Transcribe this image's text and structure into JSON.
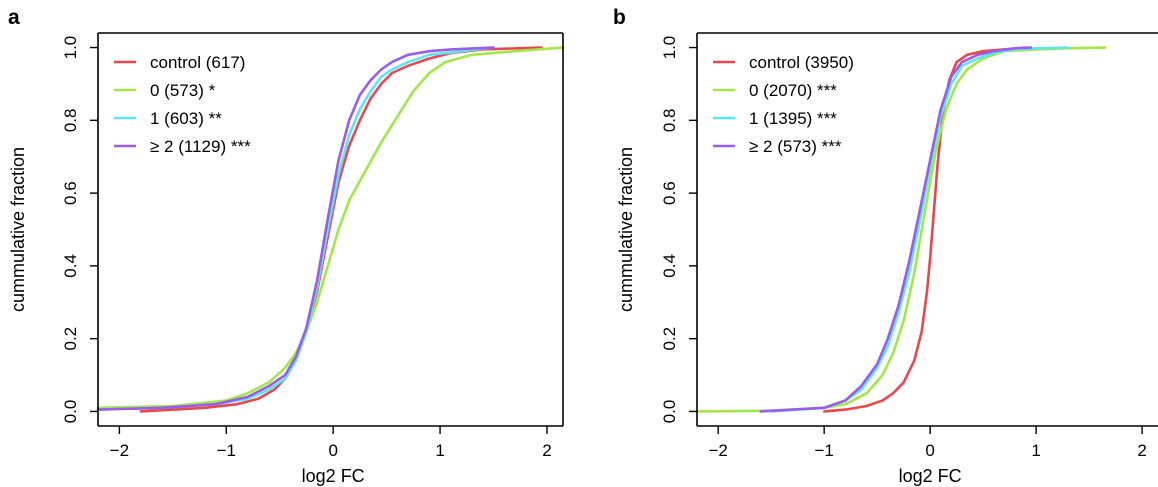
{
  "colors": {
    "control": "#e8484d",
    "zero": "#a3e64a",
    "one": "#5fe4f3",
    "two_plus": "#9b5ce8",
    "axis": "#000000"
  },
  "chart_data": [
    {
      "panel_label": "a",
      "type": "line",
      "xlabel": "log2 FC",
      "ylabel": "cummulative fraction",
      "xlim": [
        -2.2,
        2.15
      ],
      "ylim": [
        -0.04,
        1.04
      ],
      "x_ticks": [
        -2,
        -1,
        0,
        1,
        2
      ],
      "x_tick_labels": [
        "−2",
        "−1",
        "0",
        "1",
        "2"
      ],
      "y_ticks": [
        0.0,
        0.2,
        0.4,
        0.6,
        0.8,
        1.0
      ],
      "y_tick_labels": [
        "0.0",
        "0.2",
        "0.4",
        "0.6",
        "0.8",
        "1.0"
      ],
      "grid": false,
      "legend_position": "top-left",
      "series": [
        {
          "name": "control (617)",
          "color_key": "control",
          "x": [
            -1.8,
            -1.2,
            -0.9,
            -0.7,
            -0.55,
            -0.45,
            -0.35,
            -0.25,
            -0.15,
            -0.05,
            0.05,
            0.15,
            0.25,
            0.35,
            0.45,
            0.55,
            0.7,
            0.9,
            1.1,
            1.4,
            1.95
          ],
          "y": [
            0.0,
            0.01,
            0.02,
            0.035,
            0.06,
            0.09,
            0.14,
            0.22,
            0.33,
            0.48,
            0.63,
            0.73,
            0.8,
            0.86,
            0.9,
            0.93,
            0.95,
            0.97,
            0.985,
            0.995,
            1.0
          ]
        },
        {
          "name": "0 (573) *",
          "color_key": "zero",
          "x": [
            -2.2,
            -1.5,
            -1.0,
            -0.8,
            -0.6,
            -0.45,
            -0.35,
            -0.25,
            -0.15,
            -0.05,
            0.05,
            0.15,
            0.3,
            0.45,
            0.6,
            0.75,
            0.9,
            1.05,
            1.3,
            1.7,
            2.15
          ],
          "y": [
            0.01,
            0.015,
            0.03,
            0.05,
            0.08,
            0.12,
            0.16,
            0.22,
            0.3,
            0.4,
            0.5,
            0.58,
            0.66,
            0.74,
            0.81,
            0.88,
            0.93,
            0.96,
            0.98,
            0.99,
            1.0
          ]
        },
        {
          "name": "1 (603) **",
          "color_key": "one",
          "x": [
            -2.2,
            -1.6,
            -1.1,
            -0.8,
            -0.6,
            -0.45,
            -0.35,
            -0.25,
            -0.15,
            -0.05,
            0.05,
            0.15,
            0.25,
            0.35,
            0.45,
            0.55,
            0.7,
            0.9,
            1.2,
            1.5
          ],
          "y": [
            0.005,
            0.01,
            0.02,
            0.035,
            0.06,
            0.09,
            0.14,
            0.22,
            0.34,
            0.5,
            0.65,
            0.76,
            0.83,
            0.88,
            0.92,
            0.94,
            0.96,
            0.98,
            0.99,
            1.0
          ]
        },
        {
          "name": "≥ 2 (1129) ***",
          "color_key": "two_plus",
          "x": [
            -2.2,
            -1.6,
            -1.1,
            -0.8,
            -0.6,
            -0.45,
            -0.35,
            -0.25,
            -0.15,
            -0.05,
            0.05,
            0.15,
            0.25,
            0.35,
            0.45,
            0.55,
            0.7,
            0.9,
            1.1,
            1.5
          ],
          "y": [
            0.005,
            0.01,
            0.02,
            0.04,
            0.07,
            0.1,
            0.15,
            0.23,
            0.36,
            0.53,
            0.69,
            0.8,
            0.87,
            0.91,
            0.94,
            0.96,
            0.98,
            0.99,
            0.995,
            1.0
          ]
        }
      ]
    },
    {
      "panel_label": "b",
      "type": "line",
      "xlabel": "log2 FC",
      "ylabel": "cummulative fraction",
      "xlim": [
        -2.2,
        2.15
      ],
      "ylim": [
        -0.04,
        1.04
      ],
      "x_ticks": [
        -2,
        -1,
        0,
        1,
        2
      ],
      "x_tick_labels": [
        "−2",
        "−1",
        "0",
        "1",
        "2"
      ],
      "y_ticks": [
        0.0,
        0.2,
        0.4,
        0.6,
        0.8,
        1.0
      ],
      "y_tick_labels": [
        "0.0",
        "0.2",
        "0.4",
        "0.6",
        "0.8",
        "1.0"
      ],
      "grid": false,
      "legend_position": "top-left",
      "series": [
        {
          "name": "control (3950)",
          "color_key": "control",
          "x": [
            -1.0,
            -0.8,
            -0.6,
            -0.45,
            -0.35,
            -0.25,
            -0.15,
            -0.08,
            -0.03,
            0.0,
            0.03,
            0.07,
            0.12,
            0.18,
            0.25,
            0.35,
            0.5,
            0.7,
            0.9
          ],
          "y": [
            0.0,
            0.005,
            0.015,
            0.03,
            0.05,
            0.08,
            0.14,
            0.22,
            0.33,
            0.42,
            0.53,
            0.68,
            0.82,
            0.91,
            0.96,
            0.98,
            0.99,
            0.995,
            1.0
          ]
        },
        {
          "name": "0 (2070) ***",
          "color_key": "zero",
          "x": [
            -2.2,
            -1.5,
            -1.0,
            -0.8,
            -0.6,
            -0.45,
            -0.35,
            -0.25,
            -0.15,
            -0.05,
            0.05,
            0.15,
            0.25,
            0.35,
            0.5,
            0.7,
            1.0,
            1.3,
            1.65
          ],
          "y": [
            0.0,
            0.002,
            0.01,
            0.02,
            0.05,
            0.1,
            0.16,
            0.25,
            0.38,
            0.55,
            0.71,
            0.83,
            0.9,
            0.94,
            0.97,
            0.99,
            0.995,
            0.998,
            1.0
          ]
        },
        {
          "name": "1 (1395) ***",
          "color_key": "one",
          "x": [
            -1.5,
            -1.0,
            -0.8,
            -0.65,
            -0.5,
            -0.4,
            -0.3,
            -0.2,
            -0.1,
            0.0,
            0.1,
            0.2,
            0.3,
            0.45,
            0.6,
            0.8,
            1.0,
            1.3
          ],
          "y": [
            0.0,
            0.01,
            0.03,
            0.06,
            0.12,
            0.18,
            0.27,
            0.38,
            0.52,
            0.67,
            0.81,
            0.9,
            0.95,
            0.97,
            0.985,
            0.995,
            0.998,
            1.0
          ]
        },
        {
          "name": "≥ 2 (573) ***",
          "color_key": "two_plus",
          "x": [
            -1.6,
            -1.0,
            -0.8,
            -0.65,
            -0.5,
            -0.4,
            -0.3,
            -0.2,
            -0.1,
            0.0,
            0.1,
            0.2,
            0.3,
            0.45,
            0.6,
            0.8,
            0.95
          ],
          "y": [
            0.0,
            0.01,
            0.03,
            0.07,
            0.13,
            0.2,
            0.29,
            0.41,
            0.55,
            0.69,
            0.83,
            0.92,
            0.96,
            0.98,
            0.99,
            0.998,
            1.0
          ]
        }
      ]
    }
  ]
}
